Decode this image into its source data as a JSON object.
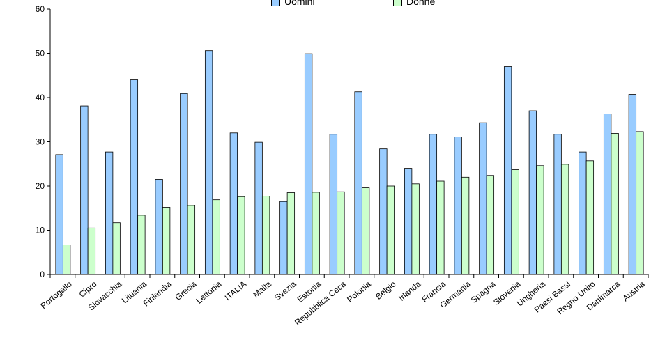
{
  "chart_data": {
    "type": "bar",
    "title": "",
    "xlabel": "",
    "ylabel": "",
    "ylim": [
      0,
      60
    ],
    "yticks": [
      0,
      10,
      20,
      30,
      40,
      50,
      60
    ],
    "grid": false,
    "legend_position": "top",
    "categories": [
      "Portogallo",
      "Cipro",
      "Slovacchia",
      "Lituania",
      "Finlandia",
      "Grecia",
      "Lettonia",
      "ITALIA",
      "Malta",
      "Svezia",
      "Estonia",
      "Repubblica Ceca",
      "Polonia",
      "Belgio",
      "Irlanda",
      "Francia",
      "Germania",
      "Spagna",
      "Slovenia",
      "Ungheria",
      "Paesi Bassi",
      "Regno Unito",
      "Danimarca",
      "Austria"
    ],
    "series": [
      {
        "name": "Uomini",
        "color": "#99ccff",
        "values": [
          27.1,
          38.1,
          27.7,
          44.0,
          21.5,
          40.9,
          50.6,
          32.0,
          29.9,
          16.5,
          49.9,
          31.7,
          41.3,
          28.4,
          24.0,
          31.7,
          31.1,
          34.3,
          47.0,
          37.0,
          31.7,
          27.7,
          36.3,
          40.7
        ]
      },
      {
        "name": "Donne",
        "color": "#ccffcc",
        "values": [
          6.7,
          10.5,
          11.7,
          13.4,
          15.2,
          15.6,
          16.9,
          17.6,
          17.7,
          18.5,
          18.6,
          18.7,
          19.6,
          20.0,
          20.5,
          21.1,
          22.0,
          22.4,
          23.7,
          24.6,
          24.9,
          25.7,
          31.9,
          32.3
        ]
      }
    ]
  }
}
